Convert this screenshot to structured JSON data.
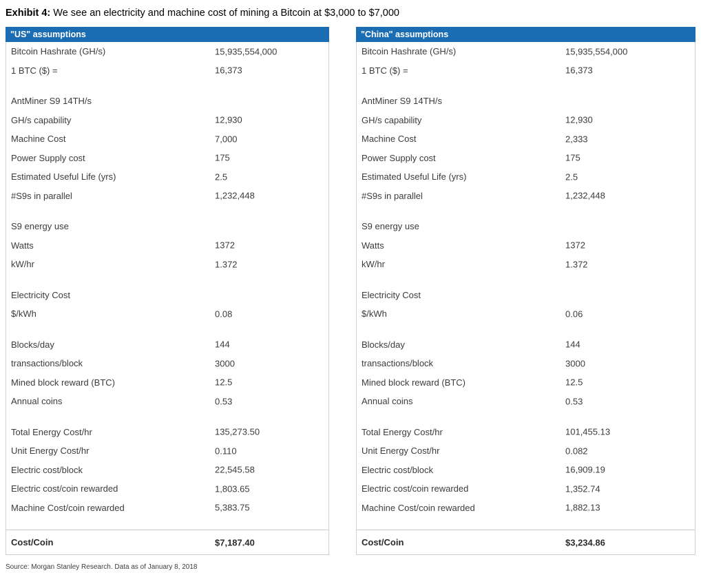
{
  "title": {
    "prefix": "Exhibit 4:",
    "text": "We see an electricity and machine cost of mining a Bitcoin at $3,000 to $7,000"
  },
  "source": "Source: Morgan Stanley Research. Data as of January 8, 2018",
  "colors": {
    "header_bg": "#1B6DB3",
    "header_text": "#FFFFFF",
    "body_text": "#3C3C3C",
    "rule": "#CCCCCC"
  },
  "panels": [
    {
      "header": "\"US\" assumptions",
      "rows": [
        {
          "label": "Bitcoin Hashrate (GH/s)",
          "value": "15,935,554,000"
        },
        {
          "label": "1 BTC ($) =",
          "value": "16,373"
        },
        {
          "spacer": true
        },
        {
          "label": "AntMiner S9 14TH/s",
          "value": ""
        },
        {
          "label": "GH/s capability",
          "value": "12,930"
        },
        {
          "label": "Machine Cost",
          "value": "7,000"
        },
        {
          "label": "Power Supply cost",
          "value": "175"
        },
        {
          "label": "Estimated Useful Life (yrs)",
          "value": "2.5"
        },
        {
          "label": "#S9s in parallel",
          "value": "1,232,448"
        },
        {
          "spacer": true
        },
        {
          "label": "S9 energy use",
          "value": ""
        },
        {
          "label": "Watts",
          "value": "1372"
        },
        {
          "label": "kW/hr",
          "value": "1.372"
        },
        {
          "spacer": true
        },
        {
          "label": "Electricity Cost",
          "value": ""
        },
        {
          "label": "$/kWh",
          "value": "0.08"
        },
        {
          "spacer": true
        },
        {
          "label": "Blocks/day",
          "value": "144"
        },
        {
          "label": "transactions/block",
          "value": "3000"
        },
        {
          "label": "Mined block reward (BTC)",
          "value": "12.5"
        },
        {
          "label": "Annual coins",
          "value": "0.53"
        },
        {
          "spacer": true
        },
        {
          "label": "Total Energy Cost/hr",
          "value": "135,273.50"
        },
        {
          "label": "Unit Energy Cost/hr",
          "value": "0.110"
        },
        {
          "label": "Electric cost/block",
          "value": "22,545.58"
        },
        {
          "label": "Electric cost/coin rewarded",
          "value": "1,803.65"
        },
        {
          "label": "Machine Cost/coin rewarded",
          "value": "5,383.75"
        },
        {
          "spacer": true
        },
        {
          "label": "Cost/Coin",
          "value": "$7,187.40",
          "total": true
        }
      ]
    },
    {
      "header": "\"China\" assumptions",
      "rows": [
        {
          "label": "Bitcoin Hashrate (GH/s)",
          "value": "15,935,554,000"
        },
        {
          "label": "1 BTC ($) =",
          "value": "16,373"
        },
        {
          "spacer": true
        },
        {
          "label": "AntMiner S9 14TH/s",
          "value": ""
        },
        {
          "label": "GH/s capability",
          "value": "12,930"
        },
        {
          "label": "Machine Cost",
          "value": "2,333"
        },
        {
          "label": "Power Supply cost",
          "value": "175"
        },
        {
          "label": "Estimated Useful Life (yrs)",
          "value": "2.5"
        },
        {
          "label": "#S9s in parallel",
          "value": "1,232,448"
        },
        {
          "spacer": true
        },
        {
          "label": "S9 energy use",
          "value": ""
        },
        {
          "label": "Watts",
          "value": "1372"
        },
        {
          "label": "kW/hr",
          "value": "1.372"
        },
        {
          "spacer": true
        },
        {
          "label": "Electricity Cost",
          "value": ""
        },
        {
          "label": "$/kWh",
          "value": "0.06"
        },
        {
          "spacer": true
        },
        {
          "label": "Blocks/day",
          "value": "144"
        },
        {
          "label": "transactions/block",
          "value": "3000"
        },
        {
          "label": "Mined block reward (BTC)",
          "value": "12.5"
        },
        {
          "label": "Annual coins",
          "value": "0.53"
        },
        {
          "spacer": true
        },
        {
          "label": "Total Energy Cost/hr",
          "value": "101,455.13"
        },
        {
          "label": "Unit Energy Cost/hr",
          "value": "0.082"
        },
        {
          "label": "Electric cost/block",
          "value": "16,909.19"
        },
        {
          "label": "Electric cost/coin rewarded",
          "value": "1,352.74"
        },
        {
          "label": "Machine Cost/coin rewarded",
          "value": "1,882.13"
        },
        {
          "spacer": true
        },
        {
          "label": "Cost/Coin",
          "value": "$3,234.86",
          "total": true
        }
      ]
    }
  ]
}
